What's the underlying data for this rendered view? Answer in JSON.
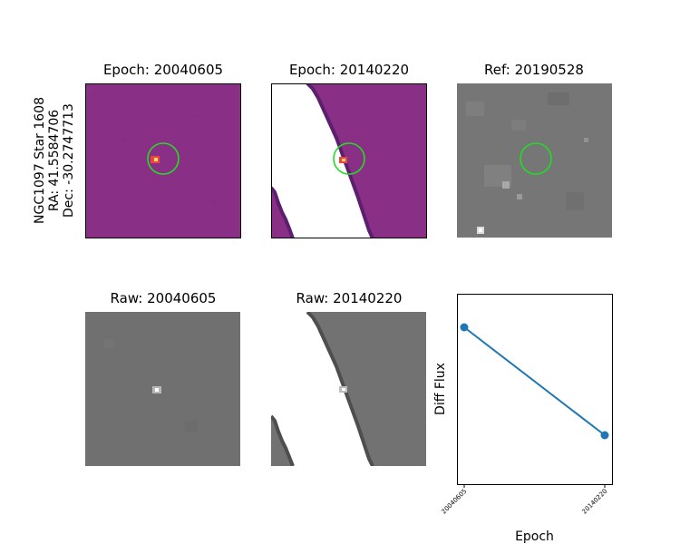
{
  "object": {
    "name": "NGC1097 Star 1608",
    "ra": "RA: 41.5584706",
    "dec": "Dec: -30.2747713"
  },
  "panels": {
    "diff1_title": "Epoch: 20040605",
    "diff2_title": "Epoch: 20140220",
    "ref_title": "Ref: 20190528",
    "raw1_title": "Raw: 20040605",
    "raw2_title": "Raw: 20140220"
  },
  "colors": {
    "diff_background": "#8a2f86",
    "marker_circle": "#22dd22",
    "series": "#1f77b4"
  },
  "chart_data": {
    "type": "line",
    "categories": [
      "20040605",
      "20140220"
    ],
    "values": [
      0.9,
      0.2
    ],
    "xlabel": "Epoch",
    "ylabel": "Diff Flux",
    "ylim": [
      0,
      1
    ],
    "grid": false,
    "y_ticks_shown": false
  }
}
